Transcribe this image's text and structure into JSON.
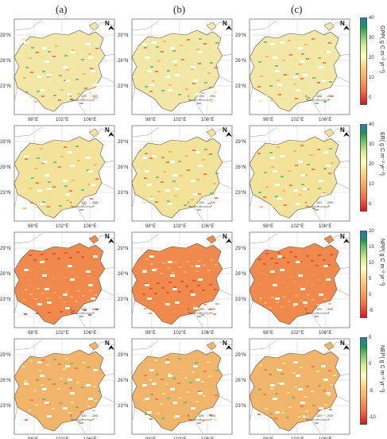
{
  "columns": [
    "(a)",
    "(b)",
    "(c)"
  ],
  "map_labels": {
    "lat": [
      "29°N",
      "26°N",
      "23°N"
    ],
    "lon": [
      "98°E",
      "102°E",
      "106°E"
    ],
    "north": "N",
    "scale_ticks": [
      "0",
      "100",
      "200"
    ],
    "scale_unit": "km"
  },
  "rows": [
    {
      "variable": "GPP",
      "title": "GPP( g C m⁻² yr⁻¹)",
      "ticks": [
        "40",
        "30",
        "20",
        "10",
        "0"
      ],
      "range": [
        -5,
        40
      ]
    },
    {
      "variable": "ER",
      "title": "ER( g C m⁻² yr⁻¹)",
      "ticks": [
        "40",
        "30",
        "20",
        "10",
        "0"
      ],
      "range": [
        -5,
        40
      ]
    },
    {
      "variable": "NPP",
      "title": "NPP( g C m⁻² yr⁻¹)",
      "ticks": [
        "20",
        "15",
        "10",
        "5",
        "0",
        "-5"
      ],
      "range": [
        -5,
        20
      ]
    },
    {
      "variable": "NEP",
      "title": "NEP( g C m⁻² yr⁻¹)",
      "ticks": [
        "5",
        "0",
        "-5",
        "-10"
      ],
      "range": [
        -10,
        5
      ]
    }
  ],
  "colors": {
    "low": "#d7191c",
    "mid": "#ffffbf",
    "high": "#2c7bb6",
    "row_fill": [
      "#f2e7a6",
      "#f3e29a",
      "#ef8a4c",
      "#f0b56a"
    ]
  }
}
